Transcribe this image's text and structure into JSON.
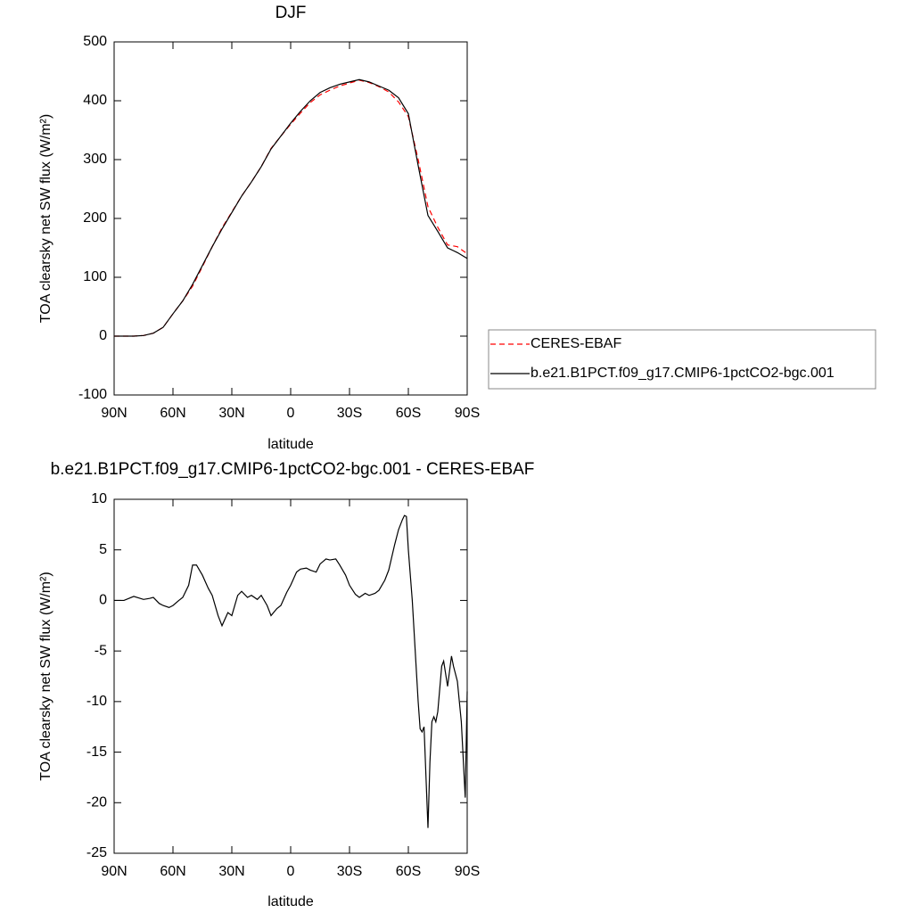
{
  "chart_data": [
    {
      "type": "line",
      "title": "DJF",
      "xlabel": "latitude",
      "ylabel": "TOA clearsky net SW flux (W/m²)",
      "x": [
        90,
        85,
        80,
        75,
        70,
        65,
        60,
        55,
        50,
        45,
        40,
        35,
        30,
        25,
        20,
        15,
        10,
        5,
        0,
        -5,
        -10,
        -15,
        -20,
        -25,
        -30,
        -35,
        -40,
        -45,
        -50,
        -55,
        -60,
        -65,
        -70,
        -75,
        -80,
        -85,
        -90
      ],
      "series": [
        {
          "name": "CERES-EBAF",
          "color": "#ff0000",
          "dash": true,
          "values": [
            0,
            0,
            0,
            1,
            5,
            15,
            38,
            60,
            85,
            118,
            152,
            184,
            211,
            238,
            262,
            288,
            319,
            340,
            360,
            379,
            397,
            410,
            418,
            425,
            430,
            435,
            431,
            424,
            415,
            398,
            373,
            300,
            220,
            185,
            155,
            152,
            140
          ]
        },
        {
          "name": "b.e21.B1PCT.f09_g17.CMIP6-1pctCO2-bgc.001",
          "color": "#000000",
          "dash": false,
          "values": [
            0,
            0,
            0,
            1,
            5,
            15,
            38,
            60,
            88,
            120,
            152,
            182,
            210,
            238,
            262,
            288,
            318,
            340,
            362,
            382,
            400,
            414,
            422,
            428,
            432,
            436,
            432,
            425,
            418,
            405,
            378,
            290,
            205,
            178,
            150,
            142,
            132
          ]
        }
      ],
      "xlim": [
        90,
        -90
      ],
      "xticks": [
        {
          "value": 90,
          "label": "90N"
        },
        {
          "value": 60,
          "label": "60N"
        },
        {
          "value": 30,
          "label": "30N"
        },
        0,
        {
          "value": -30,
          "label": "30S"
        },
        {
          "value": -60,
          "label": "60S"
        },
        {
          "value": -90,
          "label": "90S"
        }
      ],
      "ylim": [
        -100,
        500
      ],
      "yticks": [
        -100,
        0,
        100,
        200,
        300,
        400,
        500
      ],
      "legend": "right"
    },
    {
      "type": "line",
      "title": "b.e21.B1PCT.f09_g17.CMIP6-1pctCO2-bgc.001 - CERES-EBAF",
      "xlabel": "latitude",
      "ylabel": "TOA clearsky net SW flux (W/m²)",
      "x": [
        90,
        85,
        80,
        75,
        72,
        70,
        67,
        65,
        62,
        60,
        57,
        55,
        52,
        50,
        48,
        45,
        42,
        40,
        37,
        35,
        32,
        30,
        27,
        25,
        22,
        20,
        17,
        15,
        12,
        10,
        7,
        5,
        2,
        0,
        -3,
        -5,
        -8,
        -10,
        -13,
        -15,
        -18,
        -20,
        -23,
        -25,
        -28,
        -30,
        -33,
        -35,
        -38,
        -40,
        -43,
        -45,
        -48,
        -50,
        -53,
        -55,
        -57,
        -58,
        -59,
        -60,
        -62,
        -65,
        -66,
        -67,
        -68,
        -70,
        -71,
        -72,
        -73,
        -74,
        -75,
        -77,
        -78,
        -80,
        -82,
        -83,
        -85,
        -87,
        -89,
        -90
      ],
      "series": [
        {
          "color": "#000000",
          "dash": false,
          "values": [
            0,
            0,
            0.4,
            0.1,
            0.2,
            0.3,
            -0.3,
            -0.5,
            -0.7,
            -0.5,
            0,
            0.3,
            1.5,
            3.5,
            3.5,
            2.5,
            1.2,
            0.5,
            -1.5,
            -2.5,
            -1.2,
            -1.5,
            0.5,
            0.9,
            0.3,
            0.5,
            0.1,
            0.5,
            -0.5,
            -1.5,
            -0.8,
            -0.5,
            0.8,
            1.5,
            2.8,
            3.1,
            3.2,
            3,
            2.8,
            3.6,
            4.1,
            4,
            4.1,
            3.5,
            2.5,
            1.5,
            0.6,
            0.3,
            0.7,
            0.5,
            0.7,
            1,
            2,
            3,
            5.5,
            7,
            8,
            8.4,
            8.3,
            5,
            0,
            -10,
            -12.7,
            -13,
            -12.5,
            -22.5,
            -16,
            -12,
            -11.5,
            -12,
            -11,
            -6.5,
            -6,
            -8.5,
            -5.5,
            -6.5,
            -8,
            -12,
            -19.5,
            -9
          ]
        }
      ],
      "xlim": [
        90,
        -90
      ],
      "xticks": [
        {
          "value": 90,
          "label": "90N"
        },
        {
          "value": 60,
          "label": "60N"
        },
        {
          "value": 30,
          "label": "30N"
        },
        0,
        {
          "value": -30,
          "label": "30S"
        },
        {
          "value": -60,
          "label": "60S"
        },
        {
          "value": -90,
          "label": "90S"
        }
      ],
      "ylim": [
        -25,
        10
      ],
      "yticks": [
        -25,
        -20,
        -15,
        -10,
        -5,
        0,
        5,
        10
      ]
    }
  ]
}
